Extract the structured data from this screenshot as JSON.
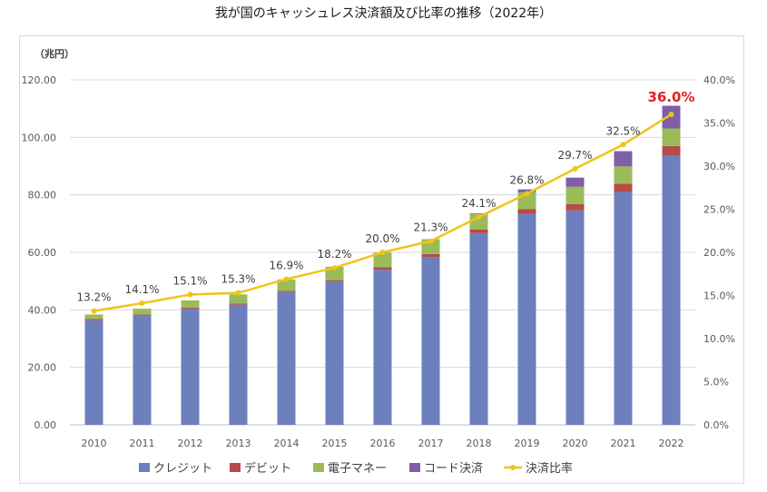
{
  "chart_data": {
    "type": "bar",
    "stacked": true,
    "title": "我が国のキャッシュレス決済額及び比率の推移（2022年）",
    "y_unit_label": "（兆円）",
    "categories": [
      "2010",
      "2011",
      "2012",
      "2013",
      "2014",
      "2015",
      "2016",
      "2017",
      "2018",
      "2019",
      "2020",
      "2021",
      "2022"
    ],
    "ylim": [
      0,
      120
    ],
    "yticks": [
      "0.00",
      "20.00",
      "40.00",
      "60.00",
      "80.00",
      "100.00",
      "120.00"
    ],
    "y2lim": [
      0,
      40
    ],
    "y2ticks": [
      "0.0%",
      "5.0%",
      "10.0%",
      "15.0%",
      "20.0%",
      "25.0%",
      "30.0%",
      "35.0%",
      "40.0%"
    ],
    "grid": true,
    "legend_position": "bottom",
    "series": [
      {
        "name": "クレジット",
        "color": "#6b80bd",
        "values": [
          36.4,
          38.0,
          40.4,
          41.8,
          46.2,
          49.8,
          53.9,
          58.4,
          66.7,
          73.4,
          74.6,
          81.0,
          93.8
        ]
      },
      {
        "name": "デビット",
        "color": "#b84a47",
        "values": [
          0.4,
          0.4,
          0.4,
          0.4,
          0.4,
          0.5,
          0.9,
          1.0,
          1.2,
          1.7,
          2.2,
          2.9,
          3.2
        ]
      },
      {
        "name": "電子マネー",
        "color": "#9bbb59",
        "values": [
          1.6,
          2.0,
          2.5,
          3.2,
          4.0,
          4.7,
          5.1,
          5.2,
          5.5,
          5.8,
          6.0,
          6.0,
          6.1
        ]
      },
      {
        "name": "コード決済",
        "color": "#7f5fa8",
        "values": [
          0,
          0,
          0,
          0,
          0,
          0,
          0,
          0,
          0.2,
          1.0,
          3.2,
          5.3,
          7.9
        ]
      }
    ],
    "line_series": {
      "name": "決済比率",
      "color": "#f0c419",
      "axis": "right",
      "values": [
        13.2,
        14.1,
        15.1,
        15.3,
        16.9,
        18.2,
        20.0,
        21.3,
        24.1,
        26.8,
        29.7,
        32.5,
        36.0
      ],
      "labels": [
        "13.2%",
        "14.1%",
        "15.1%",
        "15.3%",
        "16.9%",
        "18.2%",
        "20.0%",
        "21.3%",
        "24.1%",
        "26.8%",
        "29.7%",
        "32.5%",
        "36.0%"
      ]
    }
  }
}
